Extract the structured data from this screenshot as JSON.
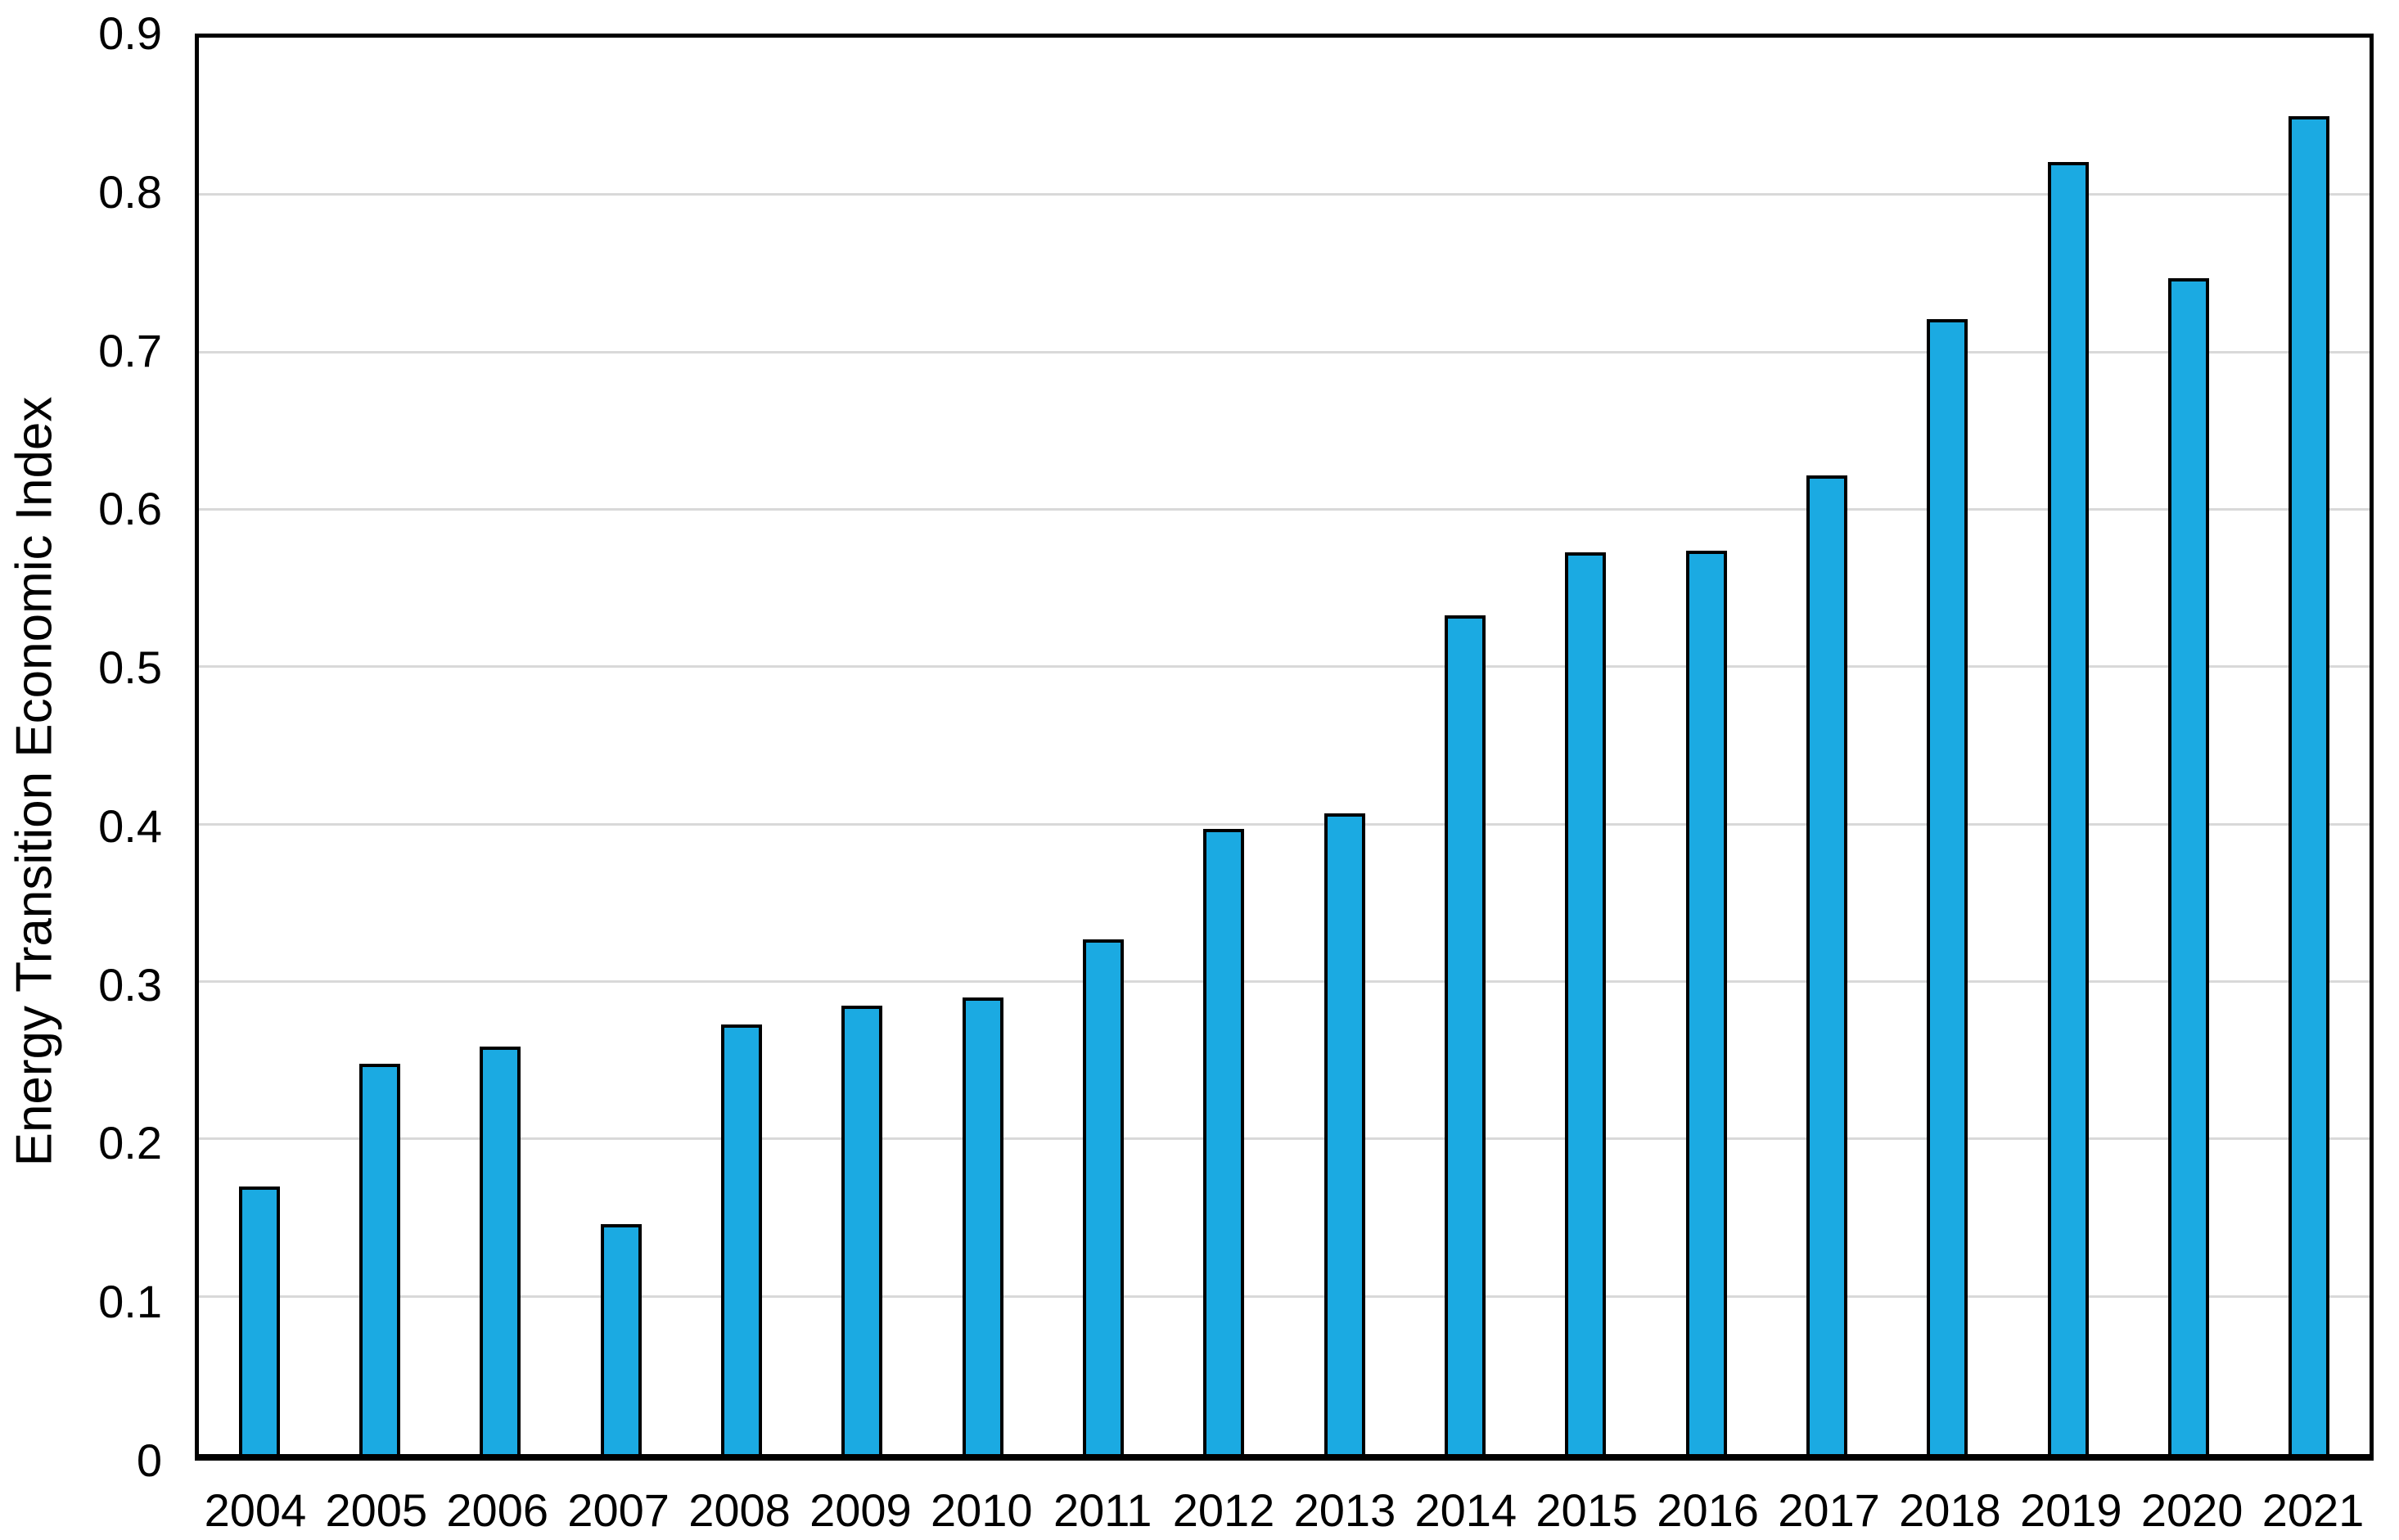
{
  "chart_data": {
    "type": "bar",
    "categories": [
      "2004",
      "2005",
      "2006",
      "2007",
      "2008",
      "2009",
      "2010",
      "2011",
      "2012",
      "2013",
      "2014",
      "2015",
      "2016",
      "2017",
      "2018",
      "2019",
      "2020",
      "2021"
    ],
    "values": [
      0.17,
      0.248,
      0.259,
      0.146,
      0.273,
      0.285,
      0.29,
      0.327,
      0.397,
      0.407,
      0.533,
      0.573,
      0.574,
      0.622,
      0.721,
      0.821,
      0.747,
      0.85
    ],
    "ylabel": "Energy Transition Economic Index",
    "xlabel": "",
    "ylim": [
      0,
      0.9
    ],
    "ytick_step": 0.1,
    "ytick_labels": [
      "0",
      "0.1",
      "0.2",
      "0.3",
      "0.4",
      "0.5",
      "0.6",
      "0.7",
      "0.8",
      "0.9"
    ],
    "gridline_values": [
      0.1,
      0.2,
      0.3,
      0.4,
      0.5,
      0.6,
      0.7,
      0.8
    ],
    "grid": "horizontal",
    "legend": "none",
    "colors": {
      "bar_fill": "#1BAAE2",
      "bar_border": "#000000",
      "gridline": "#D9D9D9",
      "axis": "#000000",
      "background": "#FFFFFF",
      "text": "#000000"
    }
  }
}
